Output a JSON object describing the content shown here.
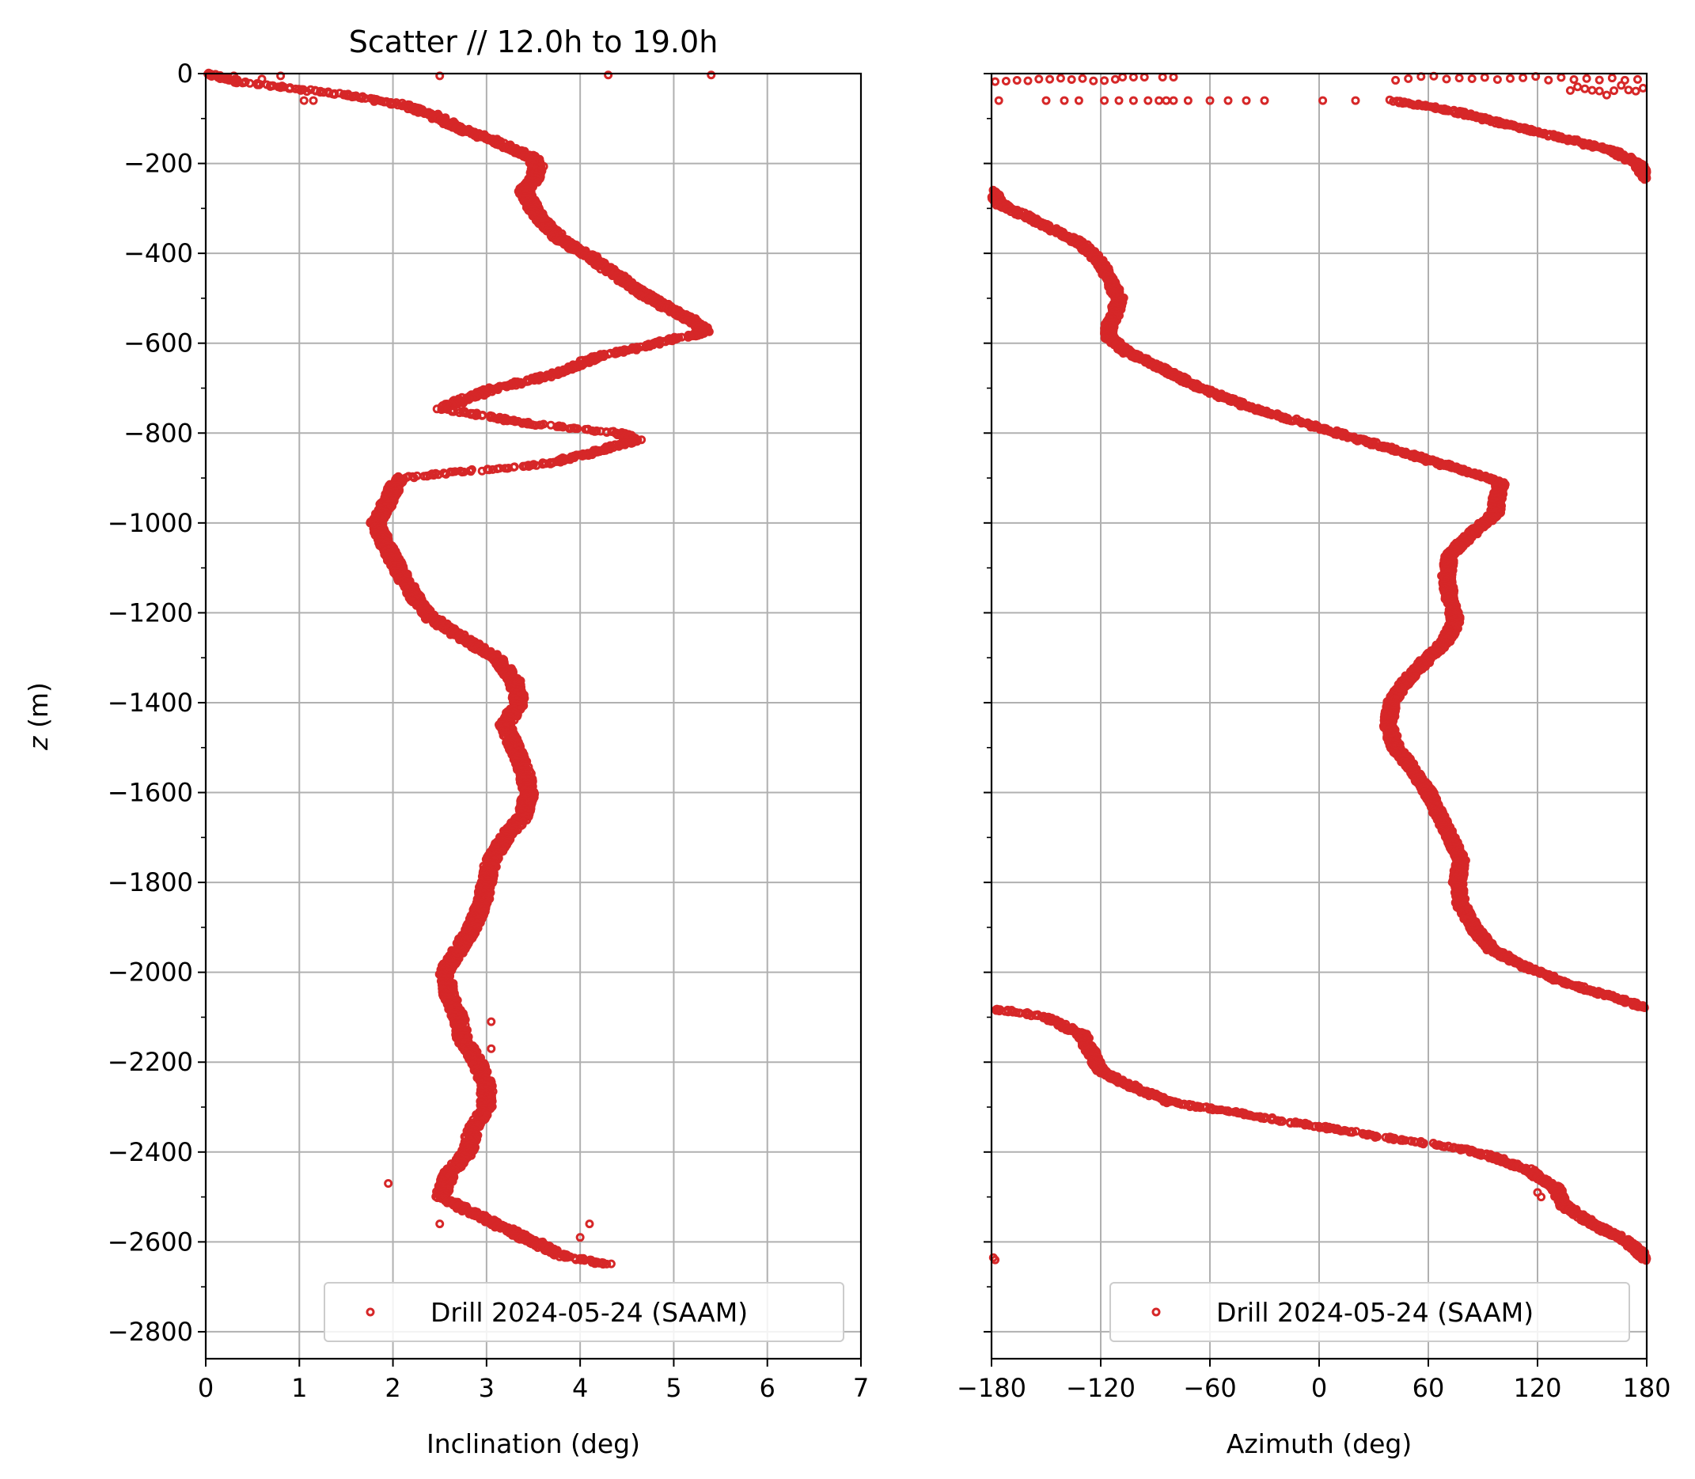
{
  "colors": {
    "series": "#d62728",
    "grid": "#b0b0b0",
    "frame": "#000000",
    "legend_border": "#cccccc"
  },
  "chart_data": [
    {
      "type": "scatter",
      "title": "Scatter // 12.0h to 19.0h",
      "xlabel": "Inclination (deg)",
      "ylabel": "z (m)",
      "xlim": [
        0,
        7
      ],
      "ylim": [
        -2860,
        0
      ],
      "xticks": [
        "0",
        "1",
        "2",
        "3",
        "4",
        "5",
        "6",
        "7"
      ],
      "yticks": [
        "0",
        "−200",
        "−400",
        "−600",
        "−800",
        "−1000",
        "−1200",
        "−1400",
        "−1600",
        "−1800",
        "−2000",
        "−2200",
        "−2400",
        "−2600",
        "−2800"
      ],
      "grid": true,
      "legend_position": "lower-right",
      "series": [
        {
          "name": "Drill 2024-05-24 (SAAM)",
          "profile": [
            [
              0,
              0
            ],
            [
              -20,
              0.4
            ],
            [
              -35,
              1.0
            ],
            [
              -50,
              1.6
            ],
            [
              -70,
              2.1
            ],
            [
              -90,
              2.4
            ],
            [
              -110,
              2.6
            ],
            [
              -130,
              2.8
            ],
            [
              -150,
              3.1
            ],
            [
              -170,
              3.3
            ],
            [
              -190,
              3.5
            ],
            [
              -210,
              3.55
            ],
            [
              -240,
              3.5
            ],
            [
              -260,
              3.4
            ],
            [
              -280,
              3.45
            ],
            [
              -300,
              3.5
            ],
            [
              -330,
              3.6
            ],
            [
              -370,
              3.8
            ],
            [
              -400,
              4.05
            ],
            [
              -450,
              4.4
            ],
            [
              -500,
              4.75
            ],
            [
              -550,
              5.2
            ],
            [
              -575,
              5.35
            ],
            [
              -600,
              4.8
            ],
            [
              -630,
              4.2
            ],
            [
              -670,
              3.7
            ],
            [
              -700,
              3.1
            ],
            [
              -730,
              2.7
            ],
            [
              -745,
              2.5
            ],
            [
              -760,
              2.9
            ],
            [
              -780,
              3.5
            ],
            [
              -800,
              4.4
            ],
            [
              -815,
              4.6
            ],
            [
              -840,
              4.2
            ],
            [
              -870,
              3.6
            ],
            [
              -885,
              2.8
            ],
            [
              -900,
              2.05
            ],
            [
              -930,
              2.0
            ],
            [
              -970,
              1.9
            ],
            [
              -1000,
              1.82
            ],
            [
              -1040,
              1.9
            ],
            [
              -1080,
              2.0
            ],
            [
              -1120,
              2.1
            ],
            [
              -1170,
              2.25
            ],
            [
              -1210,
              2.4
            ],
            [
              -1250,
              2.7
            ],
            [
              -1300,
              3.1
            ],
            [
              -1350,
              3.3
            ],
            [
              -1400,
              3.35
            ],
            [
              -1450,
              3.2
            ],
            [
              -1500,
              3.3
            ],
            [
              -1550,
              3.4
            ],
            [
              -1600,
              3.45
            ],
            [
              -1650,
              3.4
            ],
            [
              -1700,
              3.2
            ],
            [
              -1750,
              3.05
            ],
            [
              -1800,
              3.0
            ],
            [
              -1850,
              2.95
            ],
            [
              -1900,
              2.85
            ],
            [
              -1950,
              2.7
            ],
            [
              -2000,
              2.55
            ],
            [
              -2050,
              2.6
            ],
            [
              -2100,
              2.7
            ],
            [
              -2150,
              2.75
            ],
            [
              -2200,
              2.9
            ],
            [
              -2250,
              3.0
            ],
            [
              -2300,
              3.0
            ],
            [
              -2350,
              2.85
            ],
            [
              -2400,
              2.8
            ],
            [
              -2450,
              2.6
            ],
            [
              -2500,
              2.5
            ],
            [
              -2550,
              3.0
            ],
            [
              -2600,
              3.5
            ],
            [
              -2630,
              3.8
            ],
            [
              -2650,
              4.3
            ]
          ]
        }
      ]
    },
    {
      "type": "scatter",
      "title": "",
      "xlabel": "Azimuth (deg)",
      "ylabel": "",
      "xlim": [
        -180,
        180
      ],
      "ylim": [
        -2860,
        0
      ],
      "xticks": [
        "−180",
        "−120",
        "−60",
        "0",
        "60",
        "120",
        "180"
      ],
      "grid": true,
      "legend_position": "lower-right",
      "series": [
        {
          "name": "Drill 2024-05-24 (SAAM)",
          "profile": [
            [
              -60,
              40
            ],
            [
              -80,
              70
            ],
            [
              -110,
              100
            ],
            [
              -140,
              130
            ],
            [
              -170,
              160
            ],
            [
              -200,
              175
            ],
            [
              -230,
              180
            ],
            [
              -250,
              185
            ],
            [
              -260,
              -180
            ],
            [
              -290,
              -175
            ],
            [
              -320,
              -160
            ],
            [
              -350,
              -145
            ],
            [
              -380,
              -130
            ],
            [
              -420,
              -120
            ],
            [
              -460,
              -115
            ],
            [
              -500,
              -110
            ],
            [
              -530,
              -112
            ],
            [
              -560,
              -115
            ],
            [
              -590,
              -115
            ],
            [
              -620,
              -105
            ],
            [
              -660,
              -85
            ],
            [
              -700,
              -65
            ],
            [
              -740,
              -40
            ],
            [
              -770,
              -15
            ],
            [
              -800,
              10
            ],
            [
              -830,
              35
            ],
            [
              -860,
              60
            ],
            [
              -890,
              85
            ],
            [
              -910,
              100
            ],
            [
              -940,
              98
            ],
            [
              -980,
              97
            ],
            [
              -1020,
              85
            ],
            [
              -1070,
              72
            ],
            [
              -1120,
              70
            ],
            [
              -1170,
              72
            ],
            [
              -1220,
              75
            ],
            [
              -1260,
              70
            ],
            [
              -1300,
              60
            ],
            [
              -1350,
              48
            ],
            [
              -1400,
              40
            ],
            [
              -1450,
              38
            ],
            [
              -1500,
              42
            ],
            [
              -1550,
              52
            ],
            [
              -1600,
              60
            ],
            [
              -1650,
              66
            ],
            [
              -1700,
              72
            ],
            [
              -1750,
              78
            ],
            [
              -1800,
              76
            ],
            [
              -1850,
              78
            ],
            [
              -1900,
              85
            ],
            [
              -1950,
              95
            ],
            [
              -1990,
              115
            ],
            [
              -2030,
              140
            ],
            [
              -2060,
              165
            ],
            [
              -2080,
              180
            ],
            [
              -2080,
              -180
            ],
            [
              -2100,
              -150
            ],
            [
              -2140,
              -130
            ],
            [
              -2180,
              -125
            ],
            [
              -2220,
              -120
            ],
            [
              -2260,
              -100
            ],
            [
              -2290,
              -80
            ],
            [
              -2310,
              -50
            ],
            [
              -2330,
              -20
            ],
            [
              -2350,
              10
            ],
            [
              -2370,
              40
            ],
            [
              -2390,
              75
            ],
            [
              -2410,
              95
            ],
            [
              -2440,
              115
            ],
            [
              -2480,
              130
            ],
            [
              -2520,
              135
            ],
            [
              -2560,
              150
            ],
            [
              -2600,
              170
            ],
            [
              -2640,
              180
            ]
          ]
        }
      ]
    }
  ]
}
